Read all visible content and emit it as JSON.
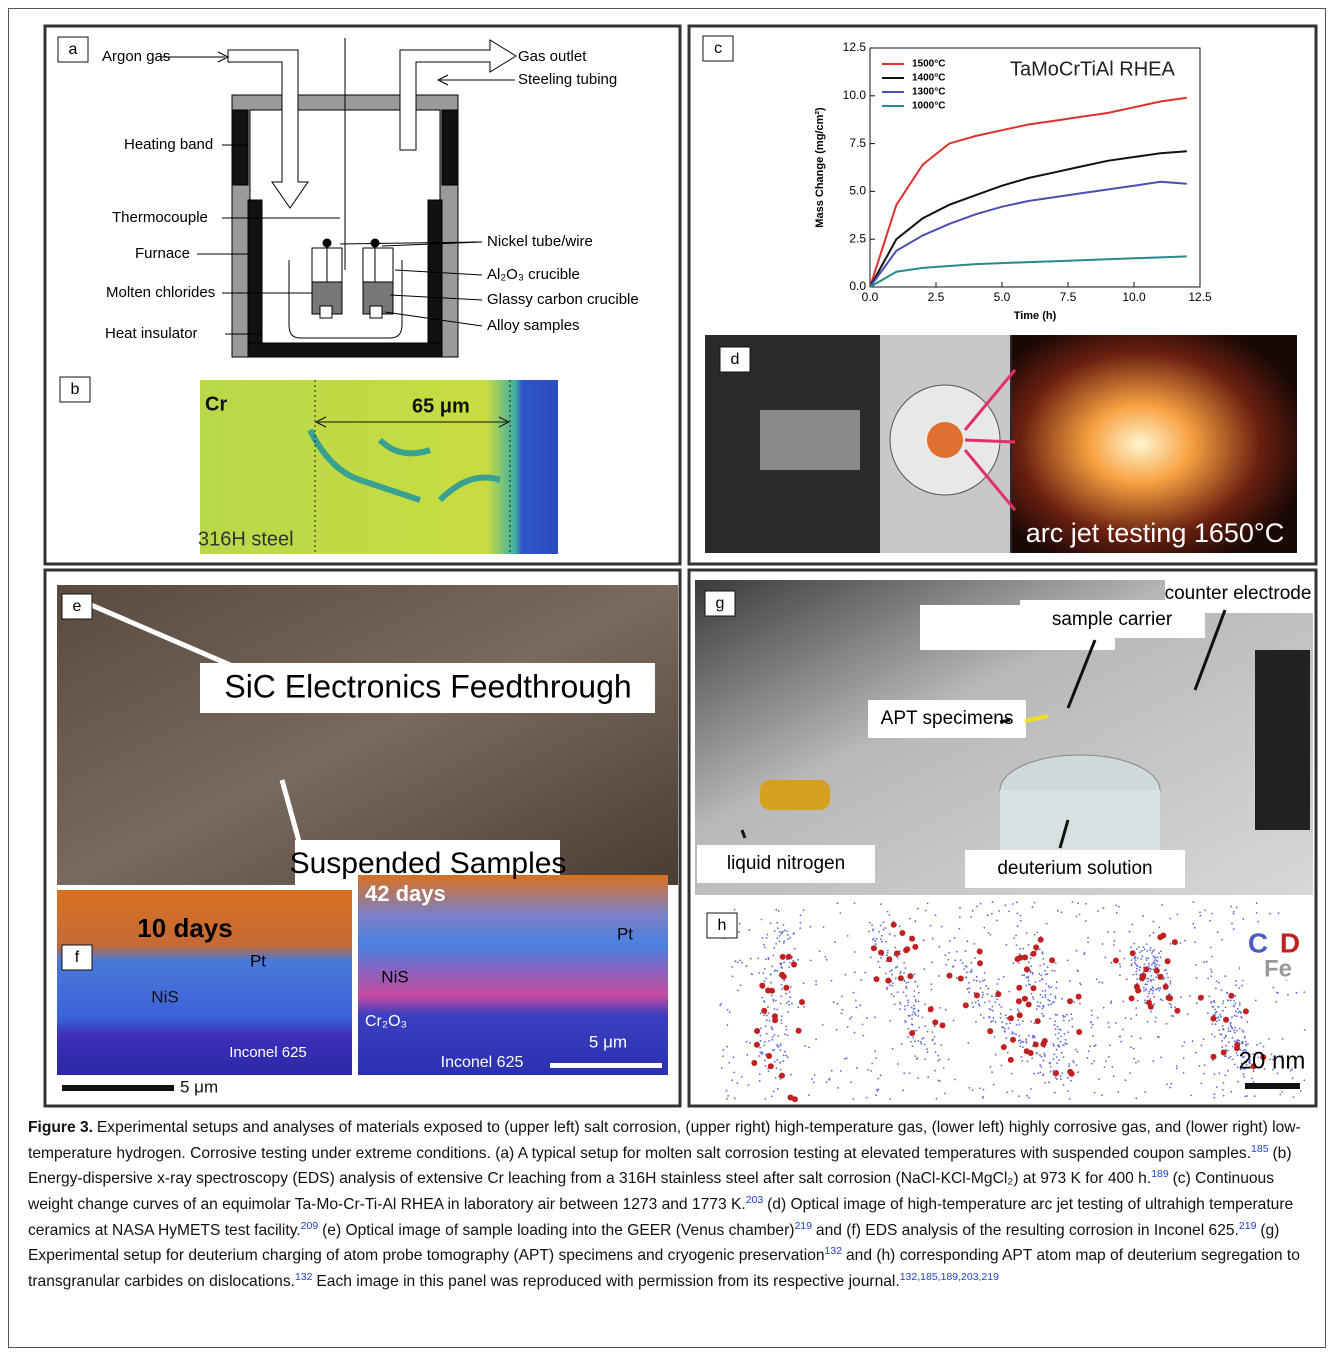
{
  "panels": {
    "a": {
      "letter": "a",
      "texts": [
        "Argon gas",
        "Gas outlet",
        "Steeling tubing",
        "Heating band",
        "Thermocouple",
        "Furnace",
        "Nickel tube/wire",
        "Al₂O₃ crucible",
        "Molten chlorides",
        "Glassy carbon crucible",
        "Heat insulator",
        "Alloy samples"
      ]
    },
    "b": {
      "letter": "b",
      "texts": [
        "Cr",
        "65 μm",
        "316H steel"
      ]
    },
    "c": {
      "letter": "c"
    },
    "d": {
      "letter": "d",
      "texts": [
        "arc jet testing 1650°C"
      ]
    },
    "e": {
      "letter": "e",
      "texts": [
        "SiC Electronics Feedthrough",
        "Suspended Samples"
      ]
    },
    "f": {
      "letter": "f",
      "left": [
        "10 days",
        "Pt",
        "NiS",
        "Inconel 625",
        "5 μm"
      ],
      "right": [
        "42 days",
        "Pt",
        "NiS",
        "Cr₂O₃",
        "Inconel 625",
        "5 μm"
      ]
    },
    "g": {
      "letter": "g",
      "texts": [
        "counter electrode",
        "sample carrier",
        "APT specimens",
        "liquid nitrogen",
        "deuterium solution"
      ]
    },
    "h": {
      "letter": "h",
      "legend": [
        "C",
        "D",
        "Fe"
      ],
      "scale": "20 nm"
    }
  },
  "chart_data": {
    "type": "line",
    "title": "TaMoCrTiAl RHEA",
    "x_label": "Time (h)",
    "y_label": "Mass Change (mg/cm²)",
    "x": [
      0,
      1,
      2,
      3,
      4,
      5,
      6,
      7,
      8,
      9,
      10,
      11,
      12
    ],
    "series": [
      {
        "name": "1500°C",
        "color": "#e0302a",
        "values": [
          0,
          4.3,
          6.4,
          7.5,
          7.9,
          8.2,
          8.5,
          8.7,
          8.9,
          9.1,
          9.4,
          9.7,
          9.9
        ]
      },
      {
        "name": "1400°C",
        "color": "#111111",
        "values": [
          0,
          2.5,
          3.6,
          4.3,
          4.8,
          5.3,
          5.7,
          6.0,
          6.3,
          6.6,
          6.8,
          7.0,
          7.1
        ]
      },
      {
        "name": "1300°C",
        "color": "#4a4fb0",
        "values": [
          0,
          1.9,
          2.7,
          3.3,
          3.8,
          4.2,
          4.5,
          4.7,
          4.9,
          5.1,
          5.3,
          5.5,
          5.4
        ]
      },
      {
        "name": "1000°C",
        "color": "#2a8a8a",
        "values": [
          0,
          0.8,
          1.0,
          1.1,
          1.2,
          1.25,
          1.3,
          1.35,
          1.4,
          1.45,
          1.5,
          1.55,
          1.6
        ]
      }
    ],
    "xlim": [
      0,
      12.5
    ],
    "ylim": [
      0,
      12.5
    ],
    "xticks": [
      {
        "value": 0,
        "label": "0.0"
      },
      2.5,
      {
        "value": 5,
        "label": "5.0"
      },
      7.5,
      {
        "value": 10,
        "label": "10.0"
      },
      12.5
    ],
    "yticks": [
      {
        "value": 0,
        "label": "0.0"
      },
      2.5,
      {
        "value": 5,
        "label": "5.0"
      },
      7.5,
      {
        "value": 10,
        "label": "10.0"
      },
      12.5
    ],
    "legend": "upper left"
  },
  "caption": {
    "label": "Figure 3.",
    "segments": [
      {
        "text": "Experimental setups and analyses of materials exposed to (upper left) salt corrosion, (upper right) high-temperature gas, (lower left) highly corrosive gas, and (lower right) low-temperature hydrogen. Corrosive testing under extreme conditions. (a) A typical setup for molten salt corrosion testing at elevated temperatures with suspended coupon samples.",
        "ref": "185"
      },
      {
        "text": "(b) Energy-dispersive x-ray spectroscopy (EDS) analysis of extensive Cr leaching from a 316H stainless steel after salt corrosion (NaCl-KCl-MgCl₂) at 973 K for 400 h.",
        "ref": "189"
      },
      {
        "text": "(c) Continuous weight change curves of an equimolar Ta-Mo-Cr-Ti-Al RHEA in laboratory air between 1273 and 1773 K.",
        "ref": "203"
      },
      {
        "text": "(d) Optical image of high-temperature arc jet testing of ultrahigh temperature ceramics at NASA HyMETS test facility.",
        "ref": "209"
      },
      {
        "text": "(e) Optical image of sample loading into the GEER (Venus chamber)",
        "ref": "219"
      },
      {
        "text": "and (f) EDS analysis of the resulting corrosion in Inconel 625.",
        "ref": "219"
      },
      {
        "text": "(g) Experimental setup for deuterium charging of atom probe tomography (APT) specimens and cryogenic preservation",
        "ref": "132"
      },
      {
        "text": "and (h) corresponding APT atom map of deuterium segregation to transgranular carbides on dislocations.",
        "ref": "132"
      },
      {
        "text": "Each image in this panel was reproduced with permission from its respective journal.",
        "ref": "132,185,189,203,219"
      }
    ]
  }
}
